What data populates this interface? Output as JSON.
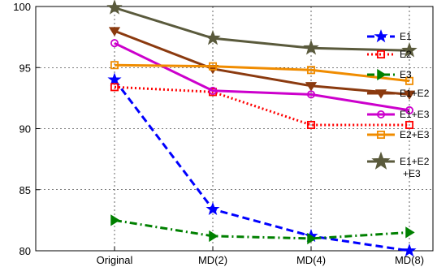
{
  "chart_data": {
    "type": "line",
    "categories": [
      "Original",
      "MD(2)",
      "MD(4)",
      "MD(8)"
    ],
    "ylim": [
      80,
      100
    ],
    "yticks": [
      80,
      85,
      90,
      95,
      100
    ],
    "grid": true,
    "legend_position": "right",
    "series": [
      {
        "name": "E1",
        "values": [
          94.0,
          83.4,
          81.2,
          80.0
        ],
        "color": "#0000ff",
        "dash": "dashed",
        "marker": "star"
      },
      {
        "name": "E2",
        "values": [
          93.4,
          93.0,
          90.3,
          90.3
        ],
        "color": "#ff0000",
        "dash": "dotted",
        "marker": "square"
      },
      {
        "name": "E3",
        "values": [
          82.5,
          81.2,
          81.0,
          81.5
        ],
        "color": "#008000",
        "dash": "dashdot",
        "marker": "triangle-right"
      },
      {
        "name": "E1+E2",
        "values": [
          98.0,
          94.9,
          93.5,
          92.8
        ],
        "color": "#8b3a0f",
        "dash": "solid",
        "marker": "triangle-down"
      },
      {
        "name": "E1+E3",
        "values": [
          97.0,
          93.1,
          92.8,
          91.5
        ],
        "color": "#cc00cc",
        "dash": "solid",
        "marker": "circle"
      },
      {
        "name": "E2+E3",
        "values": [
          95.2,
          95.1,
          94.8,
          93.9
        ],
        "color": "#f08c00",
        "dash": "solid",
        "marker": "square"
      },
      {
        "name": "E1+E2\n+E3",
        "values": [
          99.9,
          97.4,
          96.6,
          96.4
        ],
        "color": "#5a5a3c",
        "dash": "solid",
        "marker": "star"
      }
    ]
  }
}
